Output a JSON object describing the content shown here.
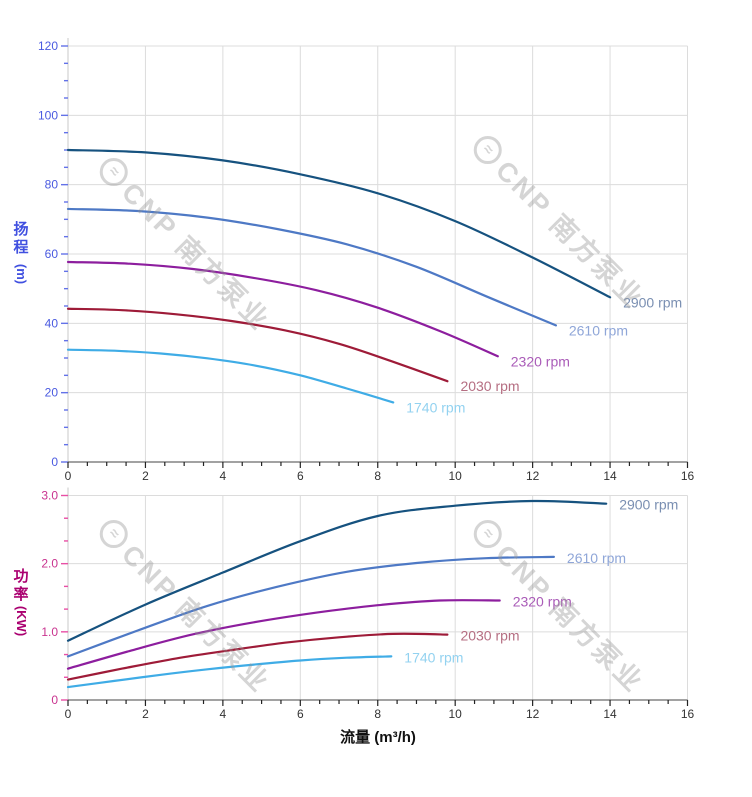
{
  "x_title": "流量 (m³/h)",
  "watermark": {
    "logo_symbol": "≈",
    "text": "CNP 南方泵业",
    "color": "#9e9e9e"
  },
  "chart_data": [
    {
      "type": "line",
      "name": "head-curve-chart",
      "ylabel_full": "扬程 (m)",
      "ylabel_lines": [
        "扬",
        "程"
      ],
      "ylabel_unit": "(m)",
      "xlabel": "流量 (m³/h)",
      "xlim": [
        0,
        16
      ],
      "ylim": [
        0,
        120
      ],
      "x_tick_step": 2,
      "x_minor_per_major": 3,
      "y_tick_step": 20,
      "y_minor_per_major": 3,
      "x_tick_labels": [
        "0",
        "2",
        "4",
        "6",
        "8",
        "10",
        "12",
        "14",
        "16"
      ],
      "y_tick_labels": [
        "0",
        "20",
        "40",
        "60",
        "80",
        "100",
        "120"
      ],
      "grid": true,
      "legend_position": "at-line-end",
      "colors": {
        "axis_title": "#4050e0",
        "tick_label": "#4a5ae0",
        "tick_mark": "#6372e8",
        "grid": "#dcdcdc",
        "y_axis_line": "#c9c9c9",
        "x_axis_line": "#444444",
        "x_tick": "#222222",
        "x_label": "#333333"
      },
      "series": [
        {
          "name": "2900 rpm",
          "color": "#16527f",
          "label_color": "#7a8fb2",
          "points": [
            [
              0,
              90
            ],
            [
              2,
              89.3
            ],
            [
              4,
              87
            ],
            [
              6,
              83
            ],
            [
              8,
              77.5
            ],
            [
              10,
              69.5
            ],
            [
              12,
              59
            ],
            [
              14,
              47.5
            ]
          ]
        },
        {
          "name": "2610 rpm",
          "color": "#4e79c5",
          "label_color": "#8fa6d8",
          "points": [
            [
              0,
              73
            ],
            [
              1.8,
              72.4
            ],
            [
              3.6,
              70.5
            ],
            [
              5.4,
              67.2
            ],
            [
              7.2,
              62.8
            ],
            [
              9,
              56.3
            ],
            [
              10.8,
              47.8
            ],
            [
              12.6,
              39.4
            ]
          ]
        },
        {
          "name": "2320 rpm",
          "color": "#8d1e9e",
          "label_color": "#aa5cb8",
          "points": [
            [
              0,
              57.7
            ],
            [
              1.6,
              57.2
            ],
            [
              3.2,
              55.7
            ],
            [
              4.8,
              53.1
            ],
            [
              6.4,
              49.6
            ],
            [
              8,
              44.5
            ],
            [
              9.6,
              37.8
            ],
            [
              11.1,
              30.5
            ]
          ]
        },
        {
          "name": "2030 rpm",
          "color": "#9e1b38",
          "label_color": "#b56e82",
          "points": [
            [
              0,
              44.2
            ],
            [
              1.4,
              43.8
            ],
            [
              2.8,
              42.6
            ],
            [
              4.2,
              40.7
            ],
            [
              5.6,
              38
            ],
            [
              7,
              34.1
            ],
            [
              8.4,
              28.9
            ],
            [
              9.8,
              23.3
            ]
          ]
        },
        {
          "name": "1740 rpm",
          "color": "#3face6",
          "label_color": "#93d2f0",
          "points": [
            [
              0,
              32.4
            ],
            [
              1.2,
              32.1
            ],
            [
              2.4,
              31.3
            ],
            [
              3.6,
              29.9
            ],
            [
              4.8,
              27.9
            ],
            [
              6,
              25
            ],
            [
              7.2,
              21.2
            ],
            [
              8.4,
              17.2
            ]
          ]
        }
      ]
    },
    {
      "type": "line",
      "name": "power-curve-chart",
      "ylabel_full": "功率 (KW)",
      "ylabel_lines": [
        "功",
        "率"
      ],
      "ylabel_unit": "(KW)",
      "xlabel": "流量 (m³/h)",
      "xlim": [
        0,
        16
      ],
      "ylim": [
        0,
        3
      ],
      "x_tick_step": 2,
      "x_minor_per_major": 3,
      "y_tick_step": 1,
      "y_minor_per_major": 2,
      "x_tick_labels": [
        "0",
        "2",
        "4",
        "6",
        "8",
        "10",
        "12",
        "14",
        "16"
      ],
      "y_tick_labels": [
        "0",
        "1.0",
        "2.0",
        "3.0"
      ],
      "grid": true,
      "legend_position": "at-line-end",
      "colors": {
        "axis_title": "#aa0070",
        "tick_label": "#c9338f",
        "tick_mark": "#e84fa5",
        "grid": "#dcdcdc",
        "y_axis_line": "#c9c9c9",
        "x_axis_line": "#444444",
        "x_tick": "#222222",
        "x_label": "#333333"
      },
      "series": [
        {
          "name": "2900 rpm",
          "color": "#16527f",
          "label_color": "#7a8fb2",
          "points": [
            [
              0,
              0.87
            ],
            [
              2,
              1.4
            ],
            [
              4,
              1.87
            ],
            [
              6,
              2.33
            ],
            [
              8,
              2.7
            ],
            [
              10,
              2.85
            ],
            [
              12,
              2.92
            ],
            [
              13.9,
              2.88
            ]
          ]
        },
        {
          "name": "2610 rpm",
          "color": "#4e79c5",
          "label_color": "#8fa6d8",
          "points": [
            [
              0,
              0.64
            ],
            [
              1.8,
              1.02
            ],
            [
              3.6,
              1.38
            ],
            [
              5.4,
              1.66
            ],
            [
              7.2,
              1.88
            ],
            [
              9,
              2.01
            ],
            [
              10.8,
              2.08
            ],
            [
              12.55,
              2.1
            ]
          ]
        },
        {
          "name": "2320 rpm",
          "color": "#8d1e9e",
          "label_color": "#aa5cb8",
          "points": [
            [
              0,
              0.46
            ],
            [
              1.6,
              0.72
            ],
            [
              3.2,
              0.96
            ],
            [
              4.8,
              1.14
            ],
            [
              6.4,
              1.28
            ],
            [
              8,
              1.39
            ],
            [
              9.6,
              1.46
            ],
            [
              11.15,
              1.46
            ]
          ]
        },
        {
          "name": "2030 rpm",
          "color": "#9e1b38",
          "label_color": "#b56e82",
          "points": [
            [
              0,
              0.3
            ],
            [
              1.4,
              0.46
            ],
            [
              2.8,
              0.61
            ],
            [
              4.2,
              0.73
            ],
            [
              5.6,
              0.84
            ],
            [
              7,
              0.92
            ],
            [
              8.4,
              0.97
            ],
            [
              9.8,
              0.96
            ]
          ]
        },
        {
          "name": "1740 rpm",
          "color": "#3face6",
          "label_color": "#93d2f0",
          "points": [
            [
              0,
              0.19
            ],
            [
              1.2,
              0.28
            ],
            [
              2.4,
              0.37
            ],
            [
              3.6,
              0.45
            ],
            [
              4.8,
              0.52
            ],
            [
              6,
              0.58
            ],
            [
              7.2,
              0.62
            ],
            [
              8.35,
              0.64
            ]
          ]
        }
      ]
    }
  ]
}
